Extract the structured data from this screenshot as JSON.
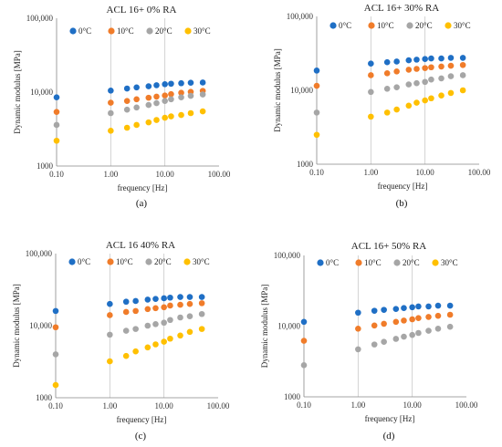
{
  "chart_data": [
    {
      "type": "scatter",
      "panel_label": "(a)",
      "title": "ACL 16+ 0% RA",
      "xlabel": "frequency [Hz]",
      "ylabel": "Dynamic modulus [MPa]",
      "x_scale": "log",
      "y_scale": "log",
      "xlim": [
        0.1,
        100
      ],
      "ylim": [
        1000,
        100000
      ],
      "x_tick_labels": [
        "0.10",
        "1.00",
        "10.00",
        "100.00"
      ],
      "y_tick_labels": [
        "1000",
        "10,000",
        "100,000"
      ],
      "grid": "vertical lines at decades",
      "legend_position": "top",
      "x": [
        0.1,
        1,
        2,
        3,
        5,
        7,
        10,
        13,
        20,
        30,
        50
      ],
      "series": [
        {
          "name": "0°C",
          "color": "#1f6fc5",
          "values": [
            8500,
            10500,
            11200,
            11600,
            12000,
            12400,
            12800,
            13000,
            13200,
            13400,
            13500
          ]
        },
        {
          "name": "10°C",
          "color": "#f07c2a",
          "values": [
            5400,
            7200,
            7600,
            8000,
            8400,
            8700,
            9000,
            9400,
            9800,
            10100,
            10400
          ]
        },
        {
          "name": "20°C",
          "color": "#a6a6a6",
          "values": [
            3600,
            5200,
            5800,
            6200,
            6700,
            7100,
            7600,
            8000,
            8500,
            8900,
            9300
          ]
        },
        {
          "name": "30°C",
          "color": "#ffc000",
          "values": [
            2200,
            3000,
            3300,
            3600,
            3900,
            4200,
            4500,
            4700,
            4900,
            5200,
            5500
          ]
        }
      ]
    },
    {
      "type": "scatter",
      "panel_label": "(b)",
      "title": "ACL 16+ 30% RA",
      "xlabel": "frequency [Hz]",
      "ylabel": "Dynamic modulus [MPa]",
      "x_scale": "log",
      "y_scale": "log",
      "xlim": [
        0.1,
        100
      ],
      "ylim": [
        1000,
        100000
      ],
      "x_tick_labels": [
        "0.10",
        "1.00",
        "10.00",
        "100.00"
      ],
      "y_tick_labels": [
        "1000",
        "10,000",
        "100,000"
      ],
      "grid": "vertical lines at decades",
      "legend_position": "top",
      "x": [
        0.1,
        1,
        2,
        3,
        5,
        7,
        10,
        13,
        20,
        30,
        50
      ],
      "series": [
        {
          "name": "0°C",
          "color": "#1f6fc5",
          "values": [
            18500,
            23000,
            24000,
            24500,
            25500,
            26000,
            26500,
            27000,
            27000,
            27500,
            27500
          ]
        },
        {
          "name": "10°C",
          "color": "#f07c2a",
          "values": [
            11500,
            16000,
            17000,
            18000,
            19000,
            19500,
            20000,
            20500,
            21000,
            21500,
            22000
          ]
        },
        {
          "name": "20°C",
          "color": "#a6a6a6",
          "values": [
            5000,
            9500,
            10500,
            11000,
            12000,
            12500,
            13000,
            14000,
            14500,
            15500,
            16000
          ]
        },
        {
          "name": "30°C",
          "color": "#ffc000",
          "values": [
            2500,
            4400,
            5000,
            5500,
            6200,
            6800,
            7300,
            7800,
            8500,
            9200,
            10000
          ]
        }
      ]
    },
    {
      "type": "scatter",
      "panel_label": "(c)",
      "title": "ACL 16 40% RA",
      "xlabel": "frequency [Hz]",
      "ylabel": "Dynamic modulus [MPa]",
      "x_scale": "log",
      "y_scale": "log",
      "xlim": [
        0.1,
        100
      ],
      "ylim": [
        1000,
        100000
      ],
      "x_tick_labels": [
        "0.10",
        "1.00",
        "10.00",
        "100.00"
      ],
      "y_tick_labels": [
        "1000",
        "10,000",
        "100,000"
      ],
      "grid": "vertical lines at decades",
      "legend_position": "top",
      "x": [
        0.1,
        1,
        2,
        3,
        5,
        7,
        10,
        13,
        20,
        30,
        50
      ],
      "series": [
        {
          "name": "0°C",
          "color": "#1f6fc5",
          "values": [
            16000,
            20000,
            21500,
            22000,
            23000,
            23500,
            24000,
            24500,
            25000,
            25000,
            25000
          ]
        },
        {
          "name": "10°C",
          "color": "#f07c2a",
          "values": [
            9500,
            14000,
            15500,
            16000,
            17000,
            17500,
            18000,
            19000,
            19500,
            20000,
            20500
          ]
        },
        {
          "name": "20°C",
          "color": "#a6a6a6",
          "values": [
            4000,
            7500,
            8500,
            9000,
            10000,
            10500,
            11000,
            12000,
            13000,
            13500,
            14500
          ]
        },
        {
          "name": "30°C",
          "color": "#ffc000",
          "values": [
            1500,
            3200,
            3800,
            4400,
            5000,
            5500,
            6000,
            6600,
            7300,
            8200,
            9000
          ]
        }
      ]
    },
    {
      "type": "scatter",
      "panel_label": "(d)",
      "title": "ACL 16+ 50% RA",
      "xlabel": "frequency [Hz]",
      "ylabel": "Dynamic modulus [MPa]",
      "x_scale": "log",
      "y_scale": "log",
      "xlim": [
        0.1,
        100
      ],
      "ylim": [
        1000,
        100000
      ],
      "x_tick_labels": [
        "0.10",
        "1.00",
        "10.00",
        "100.00"
      ],
      "y_tick_labels": [
        "1000",
        "10,000",
        "100,000"
      ],
      "grid": "vertical lines at decades",
      "legend_position": "top",
      "x": [
        0.1,
        1,
        2,
        3,
        5,
        7,
        10,
        13,
        20,
        30,
        50
      ],
      "series": [
        {
          "name": "0°C",
          "color": "#1f6fc5",
          "values": [
            11500,
            15500,
            16500,
            17000,
            17500,
            18000,
            18500,
            19000,
            19000,
            19500,
            19500
          ]
        },
        {
          "name": "10°C",
          "color": "#f07c2a",
          "values": [
            6200,
            9200,
            10200,
            10800,
            11500,
            12000,
            12500,
            13000,
            13500,
            14000,
            14500
          ]
        },
        {
          "name": "20°C",
          "color": "#a6a6a6",
          "values": [
            2800,
            4700,
            5500,
            6000,
            6600,
            7100,
            7500,
            8000,
            8600,
            9200,
            9800
          ]
        },
        {
          "name": "30°C",
          "color": "#ffc000",
          "values": []
        }
      ]
    }
  ]
}
